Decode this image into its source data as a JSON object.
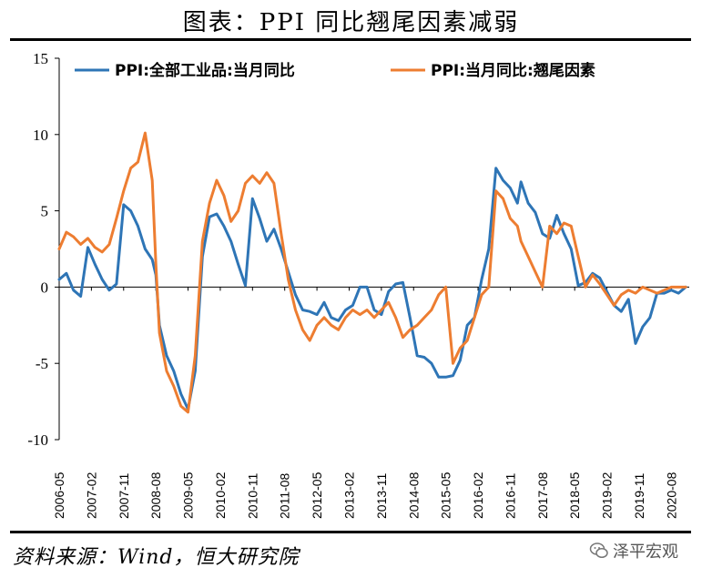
{
  "title": "图表：PPI 同比翘尾因素减弱",
  "source": "资料来源：Wind，恒大研究院",
  "watermark": "泽平宏观",
  "watermark_icon": "wechat-icon",
  "colors": {
    "series_1": "#2e75b6",
    "series_2": "#ed7d31"
  },
  "chart_data": {
    "type": "line",
    "title": "图表：PPI 同比翘尾因素减弱",
    "xlabel": "",
    "ylabel": "",
    "ylim": [
      -10,
      15
    ],
    "yticks": [
      15,
      10,
      5,
      0,
      -5,
      -10
    ],
    "grid": false,
    "legend_position": "top",
    "x_range": [
      "2006-05",
      "2021-01"
    ],
    "xticks": [
      "2006-05",
      "2007-02",
      "2007-11",
      "2008-08",
      "2009-05",
      "2010-02",
      "2010-11",
      "2011-08",
      "2012-05",
      "2013-02",
      "2013-11",
      "2014-08",
      "2015-05",
      "2016-02",
      "2016-11",
      "2017-08",
      "2018-05",
      "2019-02",
      "2019-11",
      "2020-08"
    ],
    "series": [
      {
        "name": "PPI:全部工业品:当月同比",
        "color": "#2e75b6",
        "x": [
          "2006-05",
          "2006-07",
          "2006-09",
          "2006-11",
          "2007-01",
          "2007-03",
          "2007-05",
          "2007-07",
          "2007-09",
          "2007-11",
          "2008-01",
          "2008-03",
          "2008-05",
          "2008-07",
          "2008-08",
          "2008-09",
          "2008-11",
          "2009-01",
          "2009-03",
          "2009-05",
          "2009-07",
          "2009-09",
          "2009-11",
          "2010-01",
          "2010-03",
          "2010-05",
          "2010-07",
          "2010-09",
          "2010-11",
          "2011-01",
          "2011-03",
          "2011-05",
          "2011-07",
          "2011-09",
          "2011-11",
          "2012-01",
          "2012-03",
          "2012-05",
          "2012-07",
          "2012-09",
          "2012-11",
          "2013-01",
          "2013-03",
          "2013-05",
          "2013-07",
          "2013-09",
          "2013-11",
          "2014-01",
          "2014-03",
          "2014-05",
          "2014-07",
          "2014-09",
          "2014-11",
          "2015-01",
          "2015-03",
          "2015-05",
          "2015-07",
          "2015-09",
          "2015-11",
          "2016-01",
          "2016-03",
          "2016-05",
          "2016-07",
          "2016-09",
          "2016-11",
          "2017-01",
          "2017-02",
          "2017-04",
          "2017-06",
          "2017-08",
          "2017-10",
          "2017-12",
          "2018-02",
          "2018-04",
          "2018-06",
          "2018-08",
          "2018-10",
          "2018-12",
          "2019-02",
          "2019-04",
          "2019-06",
          "2019-08",
          "2019-10",
          "2019-12",
          "2020-02",
          "2020-04",
          "2020-06",
          "2020-08",
          "2020-10",
          "2020-12"
        ],
        "values": [
          0.5,
          0.9,
          -0.2,
          -0.6,
          2.6,
          1.5,
          0.5,
          -0.2,
          0.2,
          5.4,
          5.0,
          4.0,
          2.5,
          1.8,
          0.8,
          -2.5,
          -4.5,
          -5.5,
          -7.0,
          -8.0,
          -5.5,
          2.0,
          4.6,
          4.8,
          4.0,
          3.0,
          1.5,
          0.1,
          5.8,
          4.5,
          3.0,
          3.8,
          2.5,
          1.0,
          -0.5,
          -1.5,
          -1.6,
          -1.8,
          -1.0,
          -2.0,
          -2.2,
          -1.5,
          -1.2,
          0.0,
          0.0,
          -1.5,
          -1.8,
          -0.3,
          0.2,
          0.3,
          -2.0,
          -4.5,
          -4.6,
          -5.0,
          -5.9,
          -5.9,
          -5.8,
          -4.8,
          -2.5,
          -2.0,
          0.5,
          2.5,
          7.8,
          7.0,
          6.5,
          5.5,
          6.9,
          5.5,
          4.9,
          3.5,
          3.2,
          4.7,
          3.5,
          2.5,
          0.1,
          0.3,
          0.9,
          0.6,
          -0.3,
          -1.2,
          -1.6,
          -0.8,
          -3.7,
          -2.6,
          -2.0,
          -0.4,
          -0.4,
          -0.2,
          -0.4,
          0.0
        ]
      },
      {
        "name": "PPI:当月同比:翘尾因素",
        "color": "#ed7d31",
        "x": [
          "2006-05",
          "2006-07",
          "2006-09",
          "2006-11",
          "2007-01",
          "2007-03",
          "2007-05",
          "2007-07",
          "2007-09",
          "2007-11",
          "2008-01",
          "2008-03",
          "2008-05",
          "2008-07",
          "2008-08",
          "2008-09",
          "2008-11",
          "2009-01",
          "2009-03",
          "2009-05",
          "2009-07",
          "2009-09",
          "2009-11",
          "2010-01",
          "2010-03",
          "2010-05",
          "2010-07",
          "2010-09",
          "2010-11",
          "2011-01",
          "2011-03",
          "2011-05",
          "2011-07",
          "2011-09",
          "2011-11",
          "2012-01",
          "2012-03",
          "2012-05",
          "2012-07",
          "2012-09",
          "2012-11",
          "2013-01",
          "2013-03",
          "2013-05",
          "2013-07",
          "2013-09",
          "2013-11",
          "2014-01",
          "2014-03",
          "2014-05",
          "2014-07",
          "2014-09",
          "2014-11",
          "2015-01",
          "2015-03",
          "2015-05",
          "2015-07",
          "2015-09",
          "2015-11",
          "2016-01",
          "2016-03",
          "2016-05",
          "2016-07",
          "2016-09",
          "2016-11",
          "2017-01",
          "2017-02",
          "2017-04",
          "2017-06",
          "2017-08",
          "2017-10",
          "2017-12",
          "2018-02",
          "2018-04",
          "2018-06",
          "2018-08",
          "2018-10",
          "2018-12",
          "2019-02",
          "2019-04",
          "2019-06",
          "2019-08",
          "2019-10",
          "2019-12",
          "2020-02",
          "2020-04",
          "2020-06",
          "2020-08",
          "2020-10",
          "2020-12"
        ],
        "values": [
          2.5,
          3.6,
          3.3,
          2.8,
          3.2,
          2.6,
          2.3,
          2.8,
          4.5,
          6.3,
          7.8,
          8.2,
          10.1,
          7.0,
          1.5,
          -3.0,
          -5.5,
          -6.5,
          -7.8,
          -8.2,
          -4.5,
          3.0,
          5.5,
          7.0,
          6.0,
          4.3,
          5.0,
          6.8,
          7.3,
          6.8,
          7.5,
          6.8,
          3.5,
          0.5,
          -1.5,
          -2.8,
          -3.5,
          -2.5,
          -2.0,
          -2.5,
          -2.8,
          -2.0,
          -1.5,
          -1.8,
          -1.5,
          -2.0,
          -1.5,
          -1.0,
          -2.0,
          -3.3,
          -2.8,
          -2.5,
          -2.0,
          -1.5,
          -0.5,
          0.0,
          -5.0,
          -4.0,
          -3.5,
          -2.0,
          -0.5,
          0.0,
          6.3,
          5.8,
          4.5,
          4.0,
          3.0,
          2.0,
          1.0,
          0.0,
          4.0,
          3.5,
          4.2,
          4.0,
          2.0,
          0.0,
          0.8,
          0.2,
          -0.5,
          -1.2,
          -0.5,
          -0.2,
          -0.4,
          0.0,
          -0.2,
          -0.4,
          -0.2,
          0.0,
          0.0,
          0.0
        ]
      }
    ]
  }
}
